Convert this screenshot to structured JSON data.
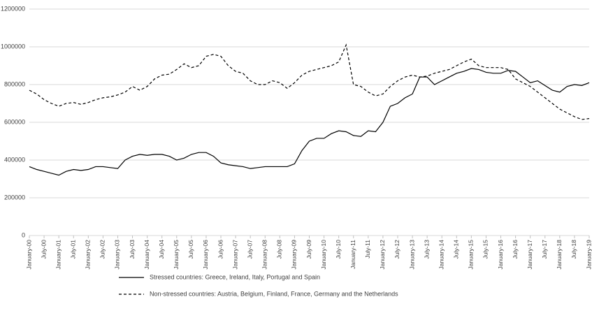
{
  "chart_data": {
    "type": "line",
    "categories": [
      "January-00",
      null,
      "July-00",
      null,
      "January-01",
      null,
      "July-01",
      null,
      "January-02",
      null,
      "July-02",
      null,
      "January-03",
      null,
      "July-03",
      null,
      "January-04",
      null,
      "July-04",
      null,
      "January-05",
      null,
      "July-05",
      null,
      "January-06",
      null,
      "July-06",
      null,
      "January-07",
      null,
      "July-07",
      null,
      "January-08",
      null,
      "July-08",
      null,
      "January-09",
      null,
      "July-09",
      null,
      "January-10",
      null,
      "July-10",
      null,
      "January-11",
      null,
      "July-11",
      null,
      "January-12",
      null,
      "July-12",
      null,
      "January-13",
      null,
      "July-13",
      null,
      "January-14",
      null,
      "July-14",
      null,
      "January-15",
      null,
      "July-15",
      null,
      "January-16",
      null,
      "July-16",
      null,
      "January-17",
      null,
      "July-17",
      null,
      "January-18",
      null,
      "July-18",
      null,
      "January-19"
    ],
    "series": [
      {
        "name": "Stressed countries: Greece, Ireland, Italy, Portugal and Spain",
        "color": "#000000",
        "line_style": "solid",
        "values": [
          365000,
          350000,
          340000,
          330000,
          320000,
          340000,
          350000,
          345000,
          350000,
          365000,
          365000,
          360000,
          355000,
          400000,
          420000,
          430000,
          425000,
          430000,
          430000,
          420000,
          400000,
          410000,
          430000,
          440000,
          440000,
          420000,
          385000,
          375000,
          370000,
          365000,
          355000,
          360000,
          365000,
          365000,
          365000,
          365000,
          380000,
          450000,
          500000,
          515000,
          515000,
          540000,
          555000,
          550000,
          530000,
          525000,
          555000,
          550000,
          600000,
          685000,
          700000,
          730000,
          750000,
          840000,
          840000,
          800000,
          820000,
          840000,
          860000,
          870000,
          885000,
          880000,
          865000,
          860000,
          860000,
          875000,
          870000,
          840000,
          810000,
          820000,
          795000,
          770000,
          760000,
          790000,
          800000,
          795000,
          810000
        ]
      },
      {
        "name": "Non-stressed countries: Austria, Belgium, Finland, France, Germany and the Netherlands",
        "color": "#000000",
        "line_style": "dashed",
        "values": [
          770000,
          750000,
          720000,
          700000,
          685000,
          700000,
          705000,
          695000,
          705000,
          720000,
          730000,
          735000,
          745000,
          760000,
          790000,
          770000,
          790000,
          830000,
          850000,
          855000,
          880000,
          910000,
          890000,
          900000,
          950000,
          960000,
          950000,
          900000,
          870000,
          860000,
          820000,
          800000,
          800000,
          820000,
          810000,
          780000,
          810000,
          850000,
          870000,
          880000,
          890000,
          900000,
          920000,
          1010000,
          800000,
          790000,
          760000,
          740000,
          750000,
          790000,
          820000,
          840000,
          850000,
          840000,
          845000,
          860000,
          870000,
          880000,
          900000,
          920000,
          935000,
          900000,
          890000,
          890000,
          890000,
          880000,
          830000,
          810000,
          790000,
          760000,
          730000,
          700000,
          670000,
          650000,
          630000,
          615000,
          620000
        ]
      }
    ],
    "ylim": [
      0,
      1200000
    ],
    "yticks": [
      0,
      200000,
      400000,
      600000,
      800000,
      1000000,
      1200000
    ],
    "grid": true,
    "legend": "bottom"
  }
}
